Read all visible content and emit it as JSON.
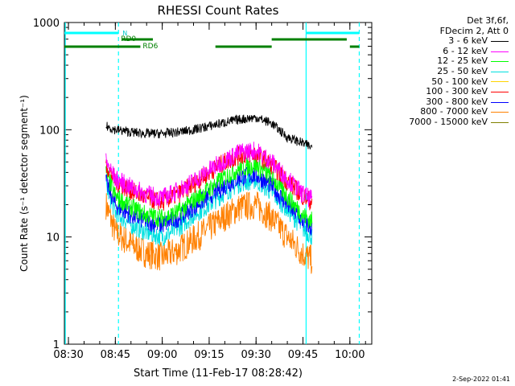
{
  "chart_data": {
    "type": "line",
    "title": "RHESSI Count Rates",
    "xlabel": "Start Time (11-Feb-17 08:28:42)",
    "ylabel": "Count Rate (s⁻¹ detector segment⁻¹)",
    "y_scale": "log",
    "ylim": [
      1,
      1000
    ],
    "xlim": [
      "08:28:42",
      "10:07:00"
    ],
    "x_ticks": [
      "08:30",
      "08:45",
      "09:00",
      "09:15",
      "09:30",
      "09:45",
      "10:00"
    ],
    "y_ticks": [
      "1",
      "10",
      "100",
      "1000"
    ],
    "legend_header": [
      "Det 3f,6f,",
      "FDecim 2, Att 0"
    ],
    "series": [
      {
        "name": "3 - 6 keV",
        "color": "#000000",
        "x": [
          "08:42",
          "08:45",
          "08:50",
          "08:55",
          "09:00",
          "09:05",
          "09:10",
          "09:15",
          "09:20",
          "09:25",
          "09:30",
          "09:35",
          "09:40",
          "09:45",
          "09:48"
        ],
        "y": [
          108,
          100,
          95,
          92,
          92,
          95,
          100,
          108,
          117,
          125,
          130,
          115,
          85,
          75,
          68
        ]
      },
      {
        "name": "6 - 12 keV",
        "color": "#ff00ff",
        "x": [
          "08:42",
          "08:45",
          "08:50",
          "08:55",
          "09:00",
          "09:05",
          "09:10",
          "09:15",
          "09:20",
          "09:25",
          "09:30",
          "09:35",
          "09:40",
          "09:45",
          "09:48"
        ],
        "y": [
          50,
          35,
          29,
          25,
          23,
          27,
          33,
          42,
          52,
          62,
          64,
          50,
          35,
          25,
          22
        ]
      },
      {
        "name": "12 - 25 keV",
        "color": "#00ff00",
        "x": [
          "08:42",
          "08:45",
          "08:50",
          "08:55",
          "09:00",
          "09:05",
          "09:10",
          "09:15",
          "09:20",
          "09:25",
          "09:30",
          "09:35",
          "09:40",
          "09:45",
          "09:48"
        ],
        "y": [
          40,
          24,
          19,
          16,
          15,
          17,
          22,
          28,
          36,
          44,
          47,
          36,
          24,
          16,
          14
        ]
      },
      {
        "name": "25 - 50 keV",
        "color": "#00e0e0",
        "x": [
          "08:42",
          "08:45",
          "08:50",
          "08:55",
          "09:00",
          "09:05",
          "09:10",
          "09:15",
          "09:20",
          "09:25",
          "09:30",
          "09:35",
          "09:40",
          "09:45",
          "09:48"
        ],
        "y": [
          30,
          17,
          13,
          11,
          10,
          12,
          16,
          20,
          26,
          32,
          34,
          26,
          18,
          12,
          10
        ]
      },
      {
        "name": "50 - 100 keV",
        "color": "#ffd400",
        "x": [],
        "y": []
      },
      {
        "name": "100 - 300 keV",
        "color": "#ff0000",
        "x": [
          "08:42",
          "08:45",
          "08:50",
          "08:55",
          "09:00",
          "09:05",
          "09:10",
          "09:15",
          "09:20",
          "09:25",
          "09:30",
          "09:35",
          "09:40",
          "09:45",
          "09:48"
        ],
        "y": [
          48,
          33,
          27,
          23,
          21,
          25,
          31,
          40,
          50,
          58,
          60,
          47,
          33,
          24,
          21
        ]
      },
      {
        "name": "300 - 800 keV",
        "color": "#0000ff",
        "x": [
          "08:42",
          "08:45",
          "08:50",
          "08:55",
          "09:00",
          "09:05",
          "09:10",
          "09:15",
          "09:20",
          "09:25",
          "09:30",
          "09:35",
          "09:40",
          "09:45",
          "09:48"
        ],
        "y": [
          33,
          20,
          16,
          14,
          13,
          15,
          19,
          24,
          30,
          36,
          38,
          30,
          20,
          14,
          12
        ]
      },
      {
        "name": "800 - 7000 keV",
        "color": "#ff8000",
        "x": [
          "08:42",
          "08:45",
          "08:50",
          "08:55",
          "09:00",
          "09:05",
          "09:10",
          "09:15",
          "09:20",
          "09:25",
          "09:30",
          "09:35",
          "09:40",
          "09:45",
          "09:48"
        ],
        "y": [
          20,
          11,
          8.5,
          7,
          6.5,
          7.5,
          9.5,
          12,
          15.5,
          19,
          20,
          15,
          10,
          7,
          6
        ]
      },
      {
        "name": "7000 - 15000 keV",
        "color": "#808000",
        "x": [],
        "y": []
      }
    ],
    "attenuator_bars": [
      {
        "label": "N",
        "color": "#00ffff",
        "segments": [
          [
            "08:28:42",
            "08:46"
          ],
          [
            "09:46",
            "10:03"
          ]
        ]
      },
      {
        "label": "RD0",
        "color": "#008000",
        "segments": [
          [
            "08:47",
            "08:57"
          ],
          [
            "09:35",
            "09:59"
          ]
        ]
      },
      {
        "label": "RD6",
        "color": "#008000",
        "segments": [
          [
            "08:28:42",
            "08:53"
          ],
          [
            "09:17",
            "09:35"
          ],
          [
            "10:00",
            "10:03"
          ]
        ]
      }
    ],
    "vertical_markers": [
      {
        "x": "08:46",
        "style": "dashed",
        "color": "#00ffff"
      },
      {
        "x": "09:46",
        "style": "solid",
        "color": "#00ffff"
      },
      {
        "x": "10:03",
        "style": "dashed",
        "color": "#00ffff"
      },
      {
        "x": "08:29",
        "style": "solid",
        "color": "#00ffff"
      }
    ],
    "grid": false,
    "legend_placement": "top-right outside"
  },
  "footer": {
    "timestamp": "2-Sep-2022 01:41"
  }
}
